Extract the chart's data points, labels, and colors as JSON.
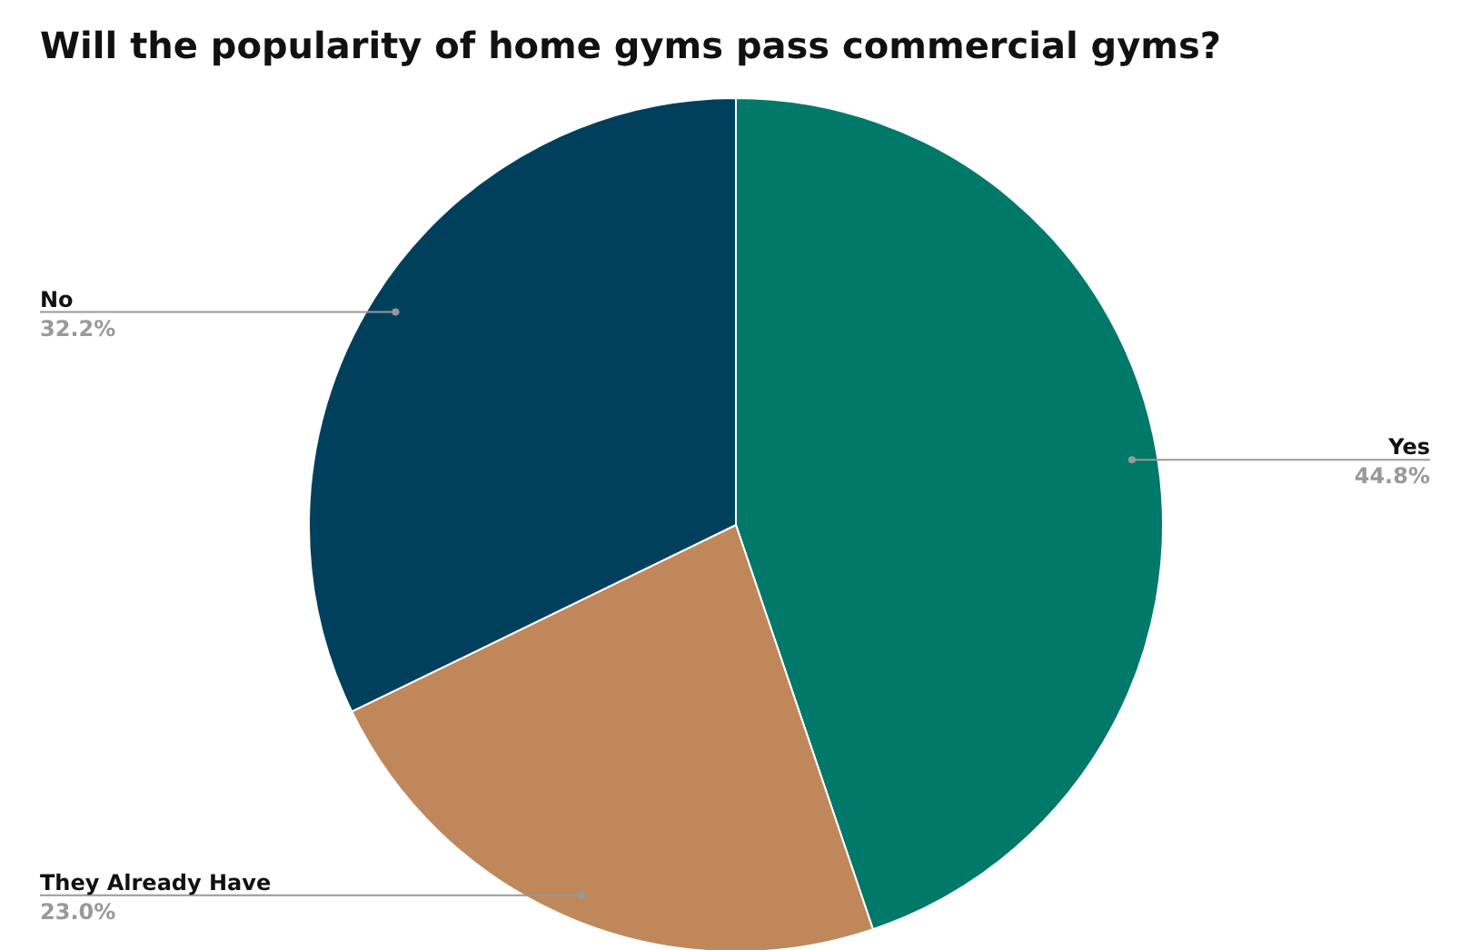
{
  "chart_data": {
    "type": "pie",
    "title": "Will the popularity of home gyms pass commercial gyms?",
    "categories": [
      "Yes",
      "They Already Have",
      "No"
    ],
    "values": [
      44.8,
      23.0,
      32.2
    ],
    "colors": [
      "#00786a",
      "#c0875a",
      "#00405c"
    ],
    "value_labels": [
      "44.8%",
      "23.0%",
      "32.2%"
    ],
    "legend": false
  }
}
